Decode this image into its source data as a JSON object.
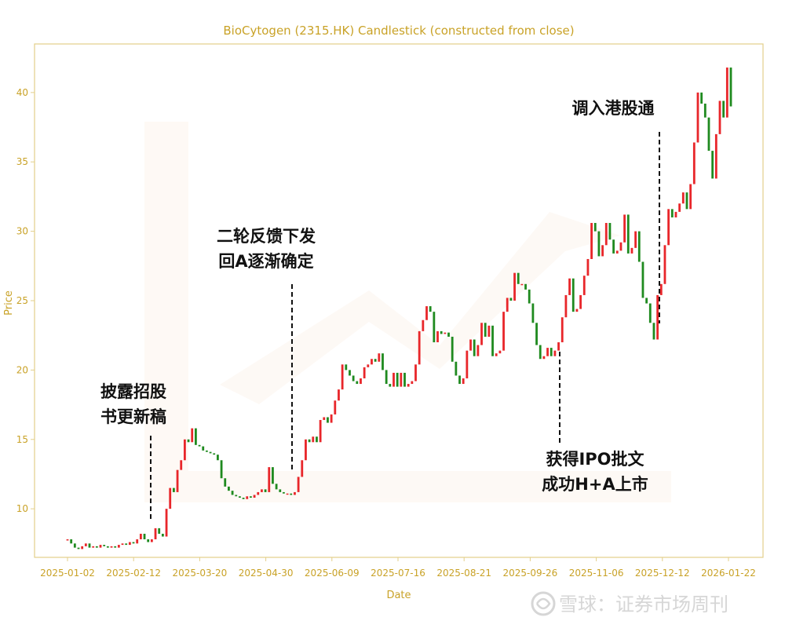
{
  "chart_data": {
    "type": "candlestick",
    "title": "BioCytogen (2315.HK) Candlestick (constructed from close)",
    "xlabel": "Date",
    "ylabel": "Price",
    "ylim": [
      6.5,
      43.5
    ],
    "y_ticks": [
      10,
      15,
      20,
      25,
      30,
      35,
      40
    ],
    "x_ticks": [
      "2025-01-02",
      "2025-02-12",
      "2025-03-20",
      "2025-04-30",
      "2025-06-09",
      "2025-07-16",
      "2025-08-21",
      "2025-09-26",
      "2025-11-06",
      "2025-12-12",
      "2026-01-22"
    ],
    "grid": false,
    "colors": {
      "up": "#e8262a",
      "down": "#1f8a1f",
      "axis": "#e3cf8a",
      "text": "#c9a227"
    },
    "close": [
      7.8,
      7.5,
      7.2,
      7.1,
      7.3,
      7.5,
      7.2,
      7.3,
      7.2,
      7.4,
      7.3,
      7.2,
      7.3,
      7.2,
      7.4,
      7.5,
      7.4,
      7.6,
      7.5,
      7.8,
      8.2,
      7.8,
      7.6,
      7.8,
      8.6,
      8.2,
      8.0,
      10.0,
      11.5,
      11.2,
      12.8,
      13.5,
      15.0,
      14.8,
      15.8,
      14.6,
      14.5,
      14.2,
      14.1,
      14.0,
      13.9,
      13.5,
      12.2,
      11.6,
      11.3,
      11.0,
      10.9,
      10.8,
      10.7,
      10.9,
      10.8,
      11.0,
      11.2,
      11.4,
      11.2,
      13.0,
      11.8,
      11.4,
      11.2,
      11.1,
      11.1,
      11.0,
      11.2,
      12.3,
      13.5,
      15.0,
      14.8,
      15.2,
      14.8,
      16.4,
      16.6,
      16.2,
      16.8,
      17.8,
      18.6,
      20.4,
      20.0,
      19.6,
      19.2,
      19.0,
      19.4,
      20.2,
      20.4,
      20.8,
      20.6,
      21.2,
      20.0,
      19.0,
      18.8,
      19.8,
      18.8,
      19.8,
      18.8,
      19.0,
      19.2,
      20.4,
      22.8,
      23.6,
      24.6,
      24.2,
      22.0,
      22.8,
      22.6,
      22.7,
      22.4,
      20.6,
      19.6,
      19.0,
      19.4,
      21.4,
      22.2,
      21.0,
      21.8,
      23.4,
      22.4,
      23.2,
      21.0,
      21.2,
      21.4,
      24.2,
      25.2,
      25.0,
      27.0,
      26.2,
      26.2,
      25.8,
      24.8,
      23.4,
      21.8,
      20.8,
      21.0,
      21.6,
      21.0,
      21.4,
      22.0,
      23.8,
      25.4,
      26.6,
      24.2,
      24.4,
      25.4,
      26.8,
      28.0,
      30.6,
      30.0,
      28.2,
      29.0,
      30.6,
      29.4,
      28.4,
      28.6,
      29.2,
      31.2,
      28.4,
      28.8,
      30.0,
      27.8,
      25.2,
      24.8,
      23.4,
      22.2,
      25.4,
      26.2,
      29.0,
      31.6,
      31.0,
      31.4,
      32.0,
      32.8,
      31.6,
      33.4,
      36.4,
      40.0,
      39.2,
      38.2,
      35.8,
      33.8,
      37.0,
      39.4,
      38.2,
      41.8,
      39.0
    ]
  },
  "annotations": {
    "a1_l1": "披露招股",
    "a1_l2": "书更新稿",
    "a2_l1": "二轮反馈下发",
    "a2_l2": "回A逐渐确定",
    "a3_l1": "获得IPO批文",
    "a3_l2": "成功H+A上市",
    "a4_l1": "调入港股通"
  },
  "watermark": {
    "icon": "xueqiu-logo-icon",
    "text": "雪球：证券市场周刊"
  }
}
